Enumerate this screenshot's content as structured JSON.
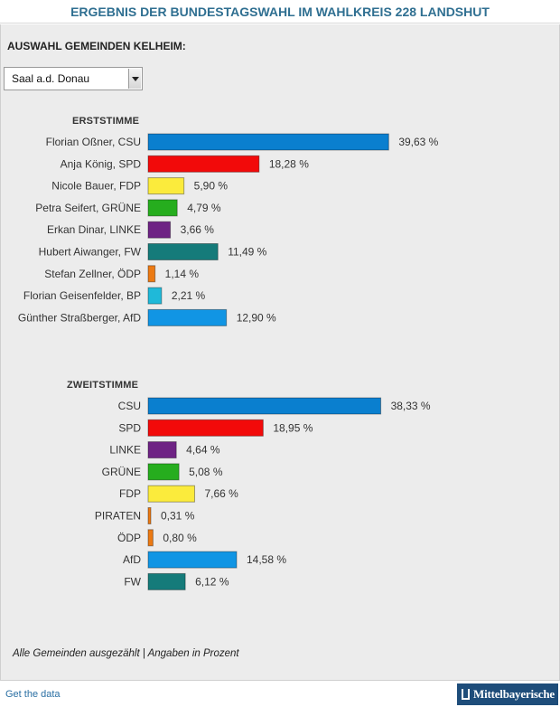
{
  "title": "ERGEBNIS DER BUNDESTAGSWAHL IM WAHLKREIS 228 LANDSHUT",
  "selector": {
    "label": "AUSWAHL GEMEINDEN KELHEIM:",
    "value": "Saal a.d. Donau"
  },
  "chart_data": [
    {
      "type": "bar",
      "title": "ERSTSTIMME",
      "categories": [
        "Florian Oßner, CSU",
        "Anja König, SPD",
        "Nicole Bauer, FDP",
        "Petra Seifert, GRÜNE",
        "Erkan Dinar, LINKE",
        "Hubert Aiwanger, FW",
        "Stefan Zellner, ÖDP",
        "Florian Geisenfelder, BP",
        "Günther Straßberger, AfD"
      ],
      "values": [
        39.63,
        18.28,
        5.9,
        4.79,
        3.66,
        11.49,
        1.14,
        2.21,
        12.9
      ],
      "value_labels": [
        "39,63 %",
        "18,28 %",
        "5,90 %",
        "4,79 %",
        "3,66 %",
        "11,49 %",
        "1,14 %",
        "2,21 %",
        "12,90 %"
      ],
      "colors": [
        "#0a7fcf",
        "#f20a0a",
        "#fbeb3c",
        "#26ad1e",
        "#6e2384",
        "#157b7a",
        "#ec7a13",
        "#1fb9d9",
        "#1195e4"
      ],
      "orientation": "horizontal"
    },
    {
      "type": "bar",
      "title": "ZWEITSTIMME",
      "categories": [
        "CSU",
        "SPD",
        "LINKE",
        "GRÜNE",
        "FDP",
        "PIRATEN",
        "ÖDP",
        "AfD",
        "FW"
      ],
      "values": [
        38.33,
        18.95,
        4.64,
        5.08,
        7.66,
        0.31,
        0.8,
        14.58,
        6.12
      ],
      "value_labels": [
        "38,33 %",
        "18,95 %",
        "4,64 %",
        "5,08 %",
        "7,66 %",
        "0,31 %",
        "0,80 %",
        "14,58 %",
        "6,12 %"
      ],
      "colors": [
        "#0a7fcf",
        "#f20a0a",
        "#6e2384",
        "#26ad1e",
        "#fbeb3c",
        "#ec7a13",
        "#ec7a13",
        "#1195e4",
        "#157b7a"
      ],
      "orientation": "horizontal"
    }
  ],
  "footnote": "Alle Gemeinden ausgezählt | Angaben in Prozent",
  "footer": {
    "link": "Get the data",
    "logo": "Mittelbayerische"
  }
}
